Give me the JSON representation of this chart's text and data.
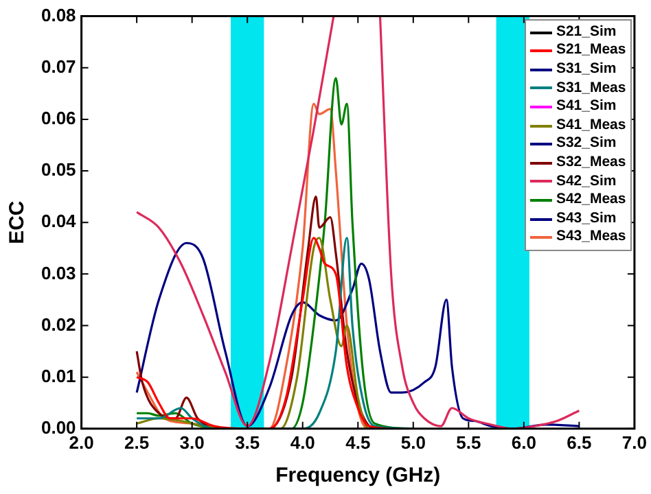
{
  "chart_data": {
    "type": "line",
    "xlabel": "Frequency (GHz)",
    "ylabel": "ECC",
    "xlim": [
      2,
      7
    ],
    "xticks": [
      {
        "value": 2,
        "label": "2.0"
      },
      {
        "value": 2.5,
        "label": "2.5"
      },
      {
        "value": 3,
        "label": "3.0"
      },
      {
        "value": 3.5,
        "label": "3.5"
      },
      {
        "value": 4,
        "label": "4.0"
      },
      {
        "value": 4.5,
        "label": "4.5"
      },
      {
        "value": 5,
        "label": "5.0"
      },
      {
        "value": 5.5,
        "label": "5.5"
      },
      {
        "value": 6,
        "label": "6.0"
      },
      {
        "value": 6.5,
        "label": "6.5"
      },
      {
        "value": 7,
        "label": "7.0"
      }
    ],
    "ylim": [
      0,
      0.08
    ],
    "yticks": [
      {
        "value": 0,
        "label": "0.00"
      },
      {
        "value": 0.01,
        "label": "0.01"
      },
      {
        "value": 0.02,
        "label": "0.02"
      },
      {
        "value": 0.03,
        "label": "0.03"
      },
      {
        "value": 0.04,
        "label": "0.04"
      },
      {
        "value": 0.05,
        "label": "0.05"
      },
      {
        "value": 0.06,
        "label": "0.06"
      },
      {
        "value": 0.07,
        "label": "0.07"
      },
      {
        "value": 0.08,
        "label": "0.08"
      }
    ],
    "grid": false,
    "legend": "top right",
    "marker": "none",
    "line_style": "solid",
    "bands": [
      {
        "axis": "x",
        "from": 3.35,
        "to": 3.65,
        "color": "#00e5ee"
      },
      {
        "axis": "x",
        "from": 5.75,
        "to": 6.05,
        "color": "#00e5ee"
      }
    ],
    "series": [
      {
        "name": "S21_Sim",
        "color": "#000000"
      },
      {
        "name": "S21_Meas",
        "color": "#ff0000",
        "x": [
          2.5,
          2.6,
          2.7,
          2.8,
          3.0,
          3.2,
          3.5,
          3.7,
          3.85,
          4.0,
          4.1,
          4.15,
          4.2,
          4.3,
          4.4,
          4.5,
          4.6,
          4.8
        ],
        "values": [
          0.01,
          0.009,
          0.005,
          0.002,
          0.002,
          0.0005,
          0,
          0,
          0.006,
          0.025,
          0.037,
          0.035,
          0.032,
          0.03,
          0.012,
          0.004,
          0.0005,
          0
        ]
      },
      {
        "name": "S31_Sim",
        "color": "#000080"
      },
      {
        "name": "S31_Meas",
        "color": "#008080",
        "x": [
          2.5,
          2.7,
          2.9,
          3.0,
          3.2,
          4.0,
          4.15,
          4.3,
          4.4,
          4.45,
          4.55,
          4.65,
          5.0
        ],
        "values": [
          0.002,
          0.002,
          0.004,
          0.002,
          0,
          0,
          0.003,
          0.015,
          0.037,
          0.02,
          0.005,
          0.0005,
          0
        ]
      },
      {
        "name": "S41_Sim",
        "color": "#ff00ff"
      },
      {
        "name": "S41_Meas",
        "color": "#808000",
        "x": [
          2.5,
          2.7,
          2.9,
          3.1,
          3.3,
          3.8,
          3.95,
          4.1,
          4.15,
          4.25,
          4.35,
          4.4,
          4.5,
          4.6,
          5.0
        ],
        "values": [
          0.001,
          0.002,
          0.0015,
          0.0005,
          0,
          0,
          0.01,
          0.035,
          0.037,
          0.025,
          0.016,
          0.02,
          0.006,
          0,
          0
        ]
      },
      {
        "name": "S32_Sim",
        "color": "#000080"
      },
      {
        "name": "S32_Meas",
        "color": "#800000",
        "x": [
          2.5,
          2.55,
          2.7,
          2.85,
          2.95,
          3.05,
          3.3,
          3.7,
          3.9,
          4.05,
          4.12,
          4.15,
          4.25,
          4.3,
          4.4,
          4.5,
          4.65,
          5.0
        ],
        "values": [
          0.015,
          0.009,
          0.003,
          0.002,
          0.006,
          0.002,
          0,
          0,
          0.01,
          0.035,
          0.045,
          0.039,
          0.041,
          0.034,
          0.015,
          0.005,
          0,
          0
        ]
      },
      {
        "name": "S42_Sim",
        "color": "#dc2a5a",
        "x": [
          2.5,
          2.7,
          2.9,
          3.1,
          3.3,
          3.5,
          3.7,
          3.9,
          4.1,
          4.28,
          4.3,
          4.68,
          4.7,
          4.8,
          4.9,
          5.0,
          5.1,
          5.25,
          5.35,
          5.5,
          5.7,
          5.9,
          6.1,
          6.3,
          6.5
        ],
        "values": [
          0.042,
          0.039,
          0.032,
          0.022,
          0.011,
          0.0005,
          0.013,
          0.035,
          0.058,
          0.08,
          null,
          null,
          0.08,
          0.03,
          0.012,
          0.005,
          0.002,
          0.0005,
          0.004,
          0.002,
          0.0008,
          0,
          0.0005,
          0.0015,
          0.0035
        ]
      },
      {
        "name": "S42_Meas",
        "color": "#008000",
        "x": [
          2.5,
          2.6,
          2.7,
          2.85,
          3.0,
          3.3,
          3.9,
          4.0,
          4.1,
          4.2,
          4.3,
          4.35,
          4.4,
          4.45,
          4.55,
          4.65,
          5.0
        ],
        "values": [
          0.003,
          0.003,
          0.0025,
          0.003,
          0.001,
          0,
          0,
          0.005,
          0.02,
          0.04,
          0.068,
          0.059,
          0.063,
          0.04,
          0.01,
          0.001,
          0
        ]
      },
      {
        "name": "S43_Sim",
        "color": "#000080",
        "x": [
          2.5,
          2.7,
          2.95,
          3.1,
          3.3,
          3.5,
          3.7,
          3.9,
          4.0,
          4.15,
          4.3,
          4.45,
          4.53,
          4.6,
          4.7,
          4.8,
          4.9,
          5.1,
          5.2,
          5.3,
          5.35,
          5.45,
          5.55,
          5.7,
          5.9,
          6.2,
          6.5
        ],
        "values": [
          0.007,
          0.025,
          0.036,
          0.033,
          0.015,
          0.0005,
          0.008,
          0.022,
          0.0245,
          0.022,
          0.021,
          0.027,
          0.032,
          0.029,
          0.015,
          0.007,
          0.007,
          0.009,
          0.012,
          0.025,
          0.012,
          0.002,
          0.0015,
          0.0005,
          0,
          0.0008,
          0.0005
        ]
      },
      {
        "name": "S43_Meas",
        "color": "#f0643c",
        "x": [
          2.5,
          2.6,
          2.75,
          3.0,
          3.3,
          3.7,
          3.85,
          4.0,
          4.1,
          4.15,
          4.25,
          4.3,
          4.4,
          4.5,
          4.6,
          5.0
        ],
        "values": [
          0.011,
          0.007,
          0.002,
          0.001,
          0,
          0,
          0.012,
          0.035,
          0.063,
          0.061,
          0.062,
          0.05,
          0.02,
          0.004,
          0,
          0
        ]
      }
    ]
  }
}
